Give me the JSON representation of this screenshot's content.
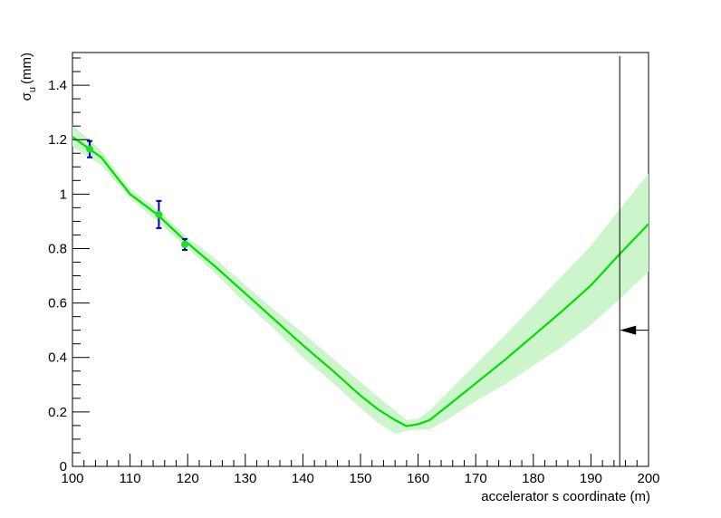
{
  "chart_data": {
    "type": "line",
    "title": "",
    "xlabel": "accelerator s coordinate (m)",
    "ylabel": {
      "symbol": "σ",
      "subscript": "u",
      "unit": "(mm)"
    },
    "xlim": [
      100,
      200
    ],
    "ylim": [
      0,
      1.52
    ],
    "xticks": [
      100,
      110,
      120,
      130,
      140,
      150,
      160,
      170,
      180,
      190,
      200
    ],
    "yticks": [
      0,
      0.2,
      0.4,
      0.6,
      0.8,
      1,
      1.2,
      1.4
    ],
    "ytick_labels": [
      "0",
      "0.2",
      "0.4",
      "0.6",
      "0.8",
      "1",
      "1.2",
      "1.4"
    ],
    "grid": false,
    "series": [
      {
        "type": "fit-curve",
        "color": "#00dd00",
        "x": [
          100,
          105,
          110,
          115,
          120,
          125,
          130,
          135,
          140,
          145,
          150,
          153,
          156,
          158,
          160,
          162,
          165,
          170,
          175,
          180,
          185,
          190,
          195,
          200
        ],
        "y": [
          1.21,
          1.135,
          1.0,
          0.92,
          0.82,
          0.73,
          0.635,
          0.54,
          0.445,
          0.355,
          0.26,
          0.21,
          0.17,
          0.148,
          0.155,
          0.17,
          0.22,
          0.305,
          0.39,
          0.48,
          0.57,
          0.665,
          0.78,
          0.89
        ]
      },
      {
        "type": "band",
        "color": "#ccf5cc",
        "x": [
          100,
          105,
          110,
          115,
          120,
          125,
          130,
          135,
          140,
          145,
          150,
          153,
          156,
          158,
          160,
          162,
          165,
          170,
          175,
          180,
          185,
          190,
          195,
          200
        ],
        "upper": [
          1.255,
          1.16,
          1.02,
          0.94,
          0.84,
          0.76,
          0.665,
          0.575,
          0.49,
          0.4,
          0.31,
          0.255,
          0.205,
          0.17,
          0.175,
          0.205,
          0.27,
          0.375,
          0.48,
          0.59,
          0.7,
          0.81,
          0.945,
          1.075
        ],
        "lower": [
          1.175,
          1.105,
          0.985,
          0.895,
          0.8,
          0.705,
          0.6,
          0.505,
          0.4,
          0.31,
          0.215,
          0.16,
          0.12,
          0.13,
          0.135,
          0.135,
          0.17,
          0.24,
          0.3,
          0.37,
          0.44,
          0.52,
          0.615,
          0.715
        ]
      },
      {
        "type": "measurement",
        "marker_color": "#22dd22",
        "errorbar_color": "#0000cc",
        "x": [
          103,
          115,
          119.5
        ],
        "y": [
          1.165,
          0.925,
          0.815
        ],
        "err": [
          0.03,
          0.05,
          0.02
        ]
      }
    ],
    "annotations": [
      {
        "type": "vertical-line",
        "x": 195,
        "color": "#000000"
      },
      {
        "type": "arrow",
        "direction": "left",
        "y": 0.5,
        "from_x": 200,
        "to_x": 195,
        "color": "#000000"
      }
    ]
  }
}
